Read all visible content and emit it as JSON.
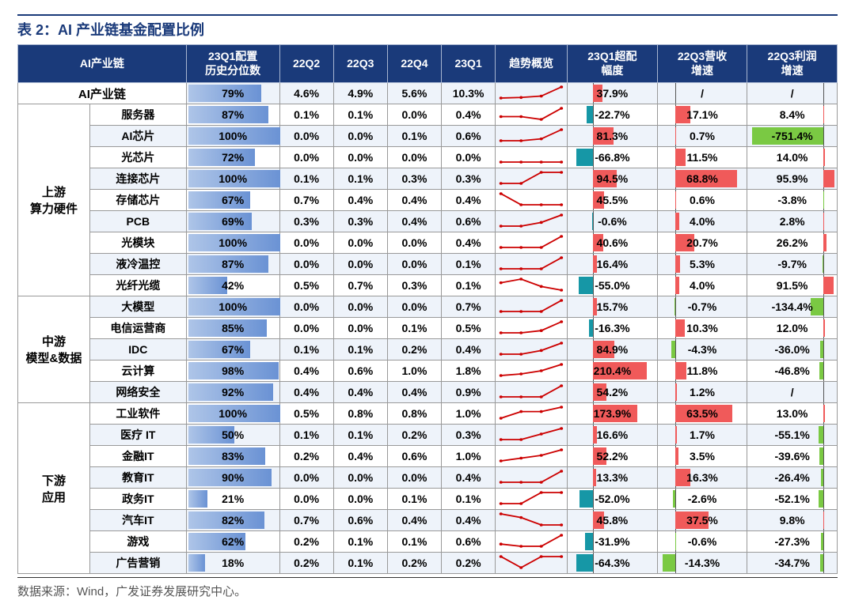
{
  "title": "表 2：AI 产业链基金配置比例",
  "source": "数据来源：Wind，广发证券发展研究中心。",
  "columns": [
    {
      "key": "cat",
      "label": "",
      "w": 88
    },
    {
      "key": "name",
      "label": "AI产业链",
      "w": 118
    },
    {
      "key": "pct",
      "label": "23Q1配置\n历史分位数",
      "w": 114
    },
    {
      "key": "q22q2",
      "label": "22Q2",
      "w": 66
    },
    {
      "key": "q22q3",
      "label": "22Q3",
      "w": 66
    },
    {
      "key": "q22q4",
      "label": "22Q4",
      "w": 66
    },
    {
      "key": "q23q1",
      "label": "23Q1",
      "w": 66
    },
    {
      "key": "trend",
      "label": "趋势概览",
      "w": 88
    },
    {
      "key": "over",
      "label": "23Q1超配\n幅度",
      "w": 110
    },
    {
      "key": "rev",
      "label": "22Q3营收\n增速",
      "w": 110
    },
    {
      "key": "prof",
      "label": "22Q3利润\n增速",
      "w": 110
    }
  ],
  "style": {
    "header_bg": "#1a3a7a",
    "header_fg": "#ffffff",
    "border_color": "#999999",
    "alt_row_bg": "#eef3fa",
    "font_size": 14,
    "databar_gradient": [
      "#aec5e8",
      "#6a92d4"
    ],
    "over_pos_color": "#f05a5a",
    "over_neg_color": "#1697a6",
    "over_axis": 0.28,
    "over_min": -100,
    "over_max": 250,
    "rev_pos_color": "#f05a5a",
    "rev_neg_color": "#7ac943",
    "rev_axis": 0.2,
    "rev_min": -20,
    "rev_max": 80,
    "prof_pos_color": "#f05a5a",
    "prof_neg_color": "#7ac943",
    "prof_axis": 0.85,
    "prof_min": -800,
    "prof_max": 120,
    "spark_color": "#c00"
  },
  "groups": [
    {
      "cat": "",
      "span": 1,
      "top": true,
      "rows": [
        {
          "name": "AI产业链",
          "pct": 79,
          "q": [
            4.6,
            4.9,
            5.6,
            10.3
          ],
          "over": 37.9,
          "rev": null,
          "prof": null
        }
      ]
    },
    {
      "cat": "上游\n算力硬件",
      "span": 9,
      "rows": [
        {
          "name": "服务器",
          "pct": 87,
          "q": [
            0.1,
            0.1,
            0.0,
            0.4
          ],
          "over": -22.7,
          "rev": 17.1,
          "prof": 8.4
        },
        {
          "name": "AI芯片",
          "pct": 100,
          "q": [
            0.0,
            0.0,
            0.1,
            0.6
          ],
          "over": 81.3,
          "rev": 0.7,
          "prof": -751.4
        },
        {
          "name": "光芯片",
          "pct": 72,
          "q": [
            0.0,
            0.0,
            0.0,
            0.0
          ],
          "over": -66.8,
          "rev": 11.5,
          "prof": 14.0
        },
        {
          "name": "连接芯片",
          "pct": 100,
          "q": [
            0.1,
            0.1,
            0.3,
            0.3
          ],
          "over": 94.5,
          "rev": 68.8,
          "prof": 95.9
        },
        {
          "name": "存储芯片",
          "pct": 67,
          "q": [
            0.7,
            0.4,
            0.4,
            0.4
          ],
          "over": 45.5,
          "rev": 0.6,
          "prof": -3.8
        },
        {
          "name": "PCB",
          "pct": 69,
          "q": [
            0.3,
            0.3,
            0.4,
            0.6
          ],
          "over": -0.6,
          "rev": 4.0,
          "prof": 2.8
        },
        {
          "name": "光模块",
          "pct": 100,
          "q": [
            0.0,
            0.0,
            0.0,
            0.4
          ],
          "over": 40.6,
          "rev": 20.7,
          "prof": 26.2
        },
        {
          "name": "液冷温控",
          "pct": 87,
          "q": [
            0.0,
            0.0,
            0.0,
            0.1
          ],
          "over": 16.4,
          "rev": 5.3,
          "prof": -9.7
        },
        {
          "name": "光纤光缆",
          "pct": 42,
          "q": [
            0.5,
            0.7,
            0.3,
            0.1
          ],
          "over": -55.0,
          "rev": 4.0,
          "prof": 91.5
        }
      ]
    },
    {
      "cat": "中游\n模型&数据",
      "span": 5,
      "rows": [
        {
          "name": "大模型",
          "pct": 100,
          "q": [
            0.0,
            0.0,
            0.0,
            0.7
          ],
          "over": 15.7,
          "rev": -0.7,
          "prof": -134.4
        },
        {
          "name": "电信运营商",
          "pct": 85,
          "q": [
            0.0,
            0.0,
            0.1,
            0.5
          ],
          "over": -16.3,
          "rev": 10.3,
          "prof": 12.0
        },
        {
          "name": "IDC",
          "pct": 67,
          "q": [
            0.1,
            0.1,
            0.2,
            0.4
          ],
          "over": 84.9,
          "rev": -4.3,
          "prof": -36.0
        },
        {
          "name": "云计算",
          "pct": 98,
          "q": [
            0.4,
            0.6,
            1.0,
            1.8
          ],
          "over": 210.4,
          "rev": 11.8,
          "prof": -46.8
        },
        {
          "name": "网络安全",
          "pct": 92,
          "q": [
            0.4,
            0.4,
            0.4,
            0.9
          ],
          "over": 54.2,
          "rev": 1.2,
          "prof": null
        }
      ]
    },
    {
      "cat": "下游\n应用",
      "span": 8,
      "rows": [
        {
          "name": "工业软件",
          "pct": 100,
          "q": [
            0.5,
            0.8,
            0.8,
            1.0
          ],
          "over": 173.9,
          "rev": 63.5,
          "prof": 13.0
        },
        {
          "name": "医疗 IT",
          "pct": 50,
          "q": [
            0.1,
            0.1,
            0.2,
            0.3
          ],
          "over": 16.6,
          "rev": 1.7,
          "prof": -55.1
        },
        {
          "name": "金融IT",
          "pct": 83,
          "q": [
            0.2,
            0.4,
            0.6,
            1.0
          ],
          "over": 52.2,
          "rev": 3.5,
          "prof": -39.6
        },
        {
          "name": "教育IT",
          "pct": 90,
          "q": [
            0.0,
            0.0,
            0.0,
            0.4
          ],
          "over": 13.3,
          "rev": 16.3,
          "prof": -26.4
        },
        {
          "name": "政务IT",
          "pct": 21,
          "q": [
            0.0,
            0.0,
            0.1,
            0.1
          ],
          "over": -52.0,
          "rev": -2.6,
          "prof": -52.1
        },
        {
          "name": "汽车IT",
          "pct": 82,
          "q": [
            0.7,
            0.6,
            0.4,
            0.4
          ],
          "over": 45.8,
          "rev": 37.5,
          "prof": 9.8
        },
        {
          "name": "游戏",
          "pct": 62,
          "q": [
            0.2,
            0.1,
            0.1,
            0.6
          ],
          "over": -31.9,
          "rev": -0.6,
          "prof": -27.3
        },
        {
          "name": "广告营销",
          "pct": 18,
          "q": [
            0.2,
            0.1,
            0.2,
            0.2
          ],
          "over": -64.3,
          "rev": -14.3,
          "prof": -34.7
        }
      ]
    }
  ]
}
